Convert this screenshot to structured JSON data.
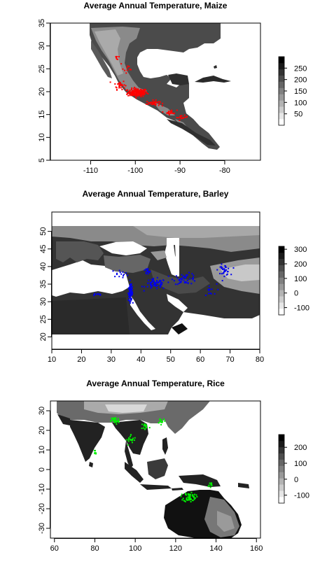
{
  "chart_data": [
    {
      "type": "heatmap",
      "title": "Average Annual Temperature, Maize",
      "xlabel": "",
      "ylabel": "",
      "xlim": [
        -119,
        -72
      ],
      "ylim": [
        5,
        35
      ],
      "x_ticks": [
        -110,
        -100,
        -90,
        -80
      ],
      "y_ticks": [
        5,
        10,
        15,
        20,
        25,
        30,
        35
      ],
      "x_tick_labels": [
        "-110",
        "-100",
        "-90",
        "-80"
      ],
      "y_tick_labels": [
        "5",
        "10",
        "15",
        "20",
        "25",
        "30",
        "35"
      ],
      "legend": {
        "placement": "right",
        "labels": [
          "250",
          "200",
          "150",
          "100",
          "50"
        ],
        "values": [
          250,
          200,
          150,
          100,
          50
        ],
        "range": [
          0,
          300
        ]
      },
      "points_color": "#ff0000",
      "raster_note_values": [
        0,
        50,
        100,
        150,
        200,
        250
      ],
      "clusters": [
        {
          "x": -99.5,
          "y": 19.8,
          "sx": 2.2,
          "sy": 0.9,
          "n": 160
        },
        {
          "x": -103.5,
          "y": 21.5,
          "sx": 1.2,
          "sy": 1.0,
          "n": 30
        },
        {
          "x": -96.0,
          "y": 17.5,
          "sx": 1.5,
          "sy": 0.6,
          "n": 35
        },
        {
          "x": -92.0,
          "y": 15.5,
          "sx": 1.3,
          "sy": 0.5,
          "n": 22
        },
        {
          "x": -89.5,
          "y": 14.4,
          "sx": 1.2,
          "sy": 0.4,
          "n": 16
        },
        {
          "x": -102.0,
          "y": 25.0,
          "sx": 1.5,
          "sy": 1.5,
          "n": 10
        },
        {
          "x": -104.0,
          "y": 27.5,
          "sx": 0.7,
          "sy": 0.7,
          "n": 6
        }
      ]
    },
    {
      "type": "heatmap",
      "title": "Average Annual Temperature, Barley",
      "xlabel": "",
      "ylabel": "",
      "xlim": [
        10,
        80
      ],
      "ylim": [
        16.5,
        55.5
      ],
      "x_ticks": [
        10,
        20,
        30,
        40,
        50,
        60,
        70,
        80
      ],
      "y_ticks": [
        20,
        25,
        30,
        35,
        40,
        45,
        50
      ],
      "x_tick_labels": [
        "10",
        "20",
        "30",
        "40",
        "50",
        "60",
        "70",
        "80"
      ],
      "y_tick_labels": [
        "20",
        "25",
        "30",
        "35",
        "40",
        "45",
        "50"
      ],
      "legend": {
        "placement": "right",
        "labels": [
          "300",
          "200",
          "100",
          "0",
          "-100"
        ],
        "values": [
          300,
          200,
          100,
          0,
          -100
        ],
        "range": [
          -150,
          320
        ]
      },
      "points_color": "#0000ee",
      "clusters": [
        {
          "x": 36.5,
          "y": 32.5,
          "sx": 0.7,
          "sy": 2.2,
          "n": 120
        },
        {
          "x": 45.0,
          "y": 35.0,
          "sx": 3.5,
          "sy": 1.5,
          "n": 60
        },
        {
          "x": 55.0,
          "y": 36.5,
          "sx": 4.0,
          "sy": 1.5,
          "n": 45
        },
        {
          "x": 68.0,
          "y": 39.0,
          "sx": 2.0,
          "sy": 1.5,
          "n": 35
        },
        {
          "x": 25.0,
          "y": 32.0,
          "sx": 2.0,
          "sy": 0.4,
          "n": 10
        },
        {
          "x": 33.0,
          "y": 38.0,
          "sx": 3.0,
          "sy": 1.0,
          "n": 15
        },
        {
          "x": 63.0,
          "y": 33.0,
          "sx": 2.5,
          "sy": 2.0,
          "n": 12
        },
        {
          "x": 42.0,
          "y": 38.5,
          "sx": 1.5,
          "sy": 1.0,
          "n": 15
        }
      ]
    },
    {
      "type": "heatmap",
      "title": "Average Annual Temperature, Rice",
      "xlabel": "",
      "ylabel": "",
      "xlim": [
        58,
        162
      ],
      "ylim": [
        -35,
        35
      ],
      "x_ticks": [
        60,
        80,
        100,
        120,
        140,
        160
      ],
      "y_ticks": [
        -30,
        -20,
        -10,
        0,
        10,
        20,
        30
      ],
      "x_tick_labels": [
        "60",
        "80",
        "100",
        "120",
        "140",
        "160"
      ],
      "y_tick_labels": [
        "-30",
        "-20",
        "-10",
        "0",
        "10",
        "20",
        "30"
      ],
      "legend": {
        "placement": "right",
        "labels": [
          "200",
          "100",
          "0",
          "-100"
        ],
        "values": [
          200,
          100,
          0,
          -100
        ],
        "range": [
          -150,
          280
        ]
      },
      "points_color": "#00ee00",
      "clusters": [
        {
          "x": 90.0,
          "y": 25.0,
          "sx": 2.0,
          "sy": 2.0,
          "n": 40
        },
        {
          "x": 105.0,
          "y": 22.0,
          "sx": 2.0,
          "sy": 2.0,
          "n": 15
        },
        {
          "x": 113.0,
          "y": 25.0,
          "sx": 2.0,
          "sy": 1.5,
          "n": 15
        },
        {
          "x": 98.0,
          "y": 15.0,
          "sx": 2.5,
          "sy": 3.0,
          "n": 20
        },
        {
          "x": 127.0,
          "y": -14.0,
          "sx": 3.0,
          "sy": 2.5,
          "n": 55
        },
        {
          "x": 137.0,
          "y": -8.0,
          "sx": 1.5,
          "sy": 2.0,
          "n": 10
        },
        {
          "x": 80.0,
          "y": 9.0,
          "sx": 1.0,
          "sy": 2.0,
          "n": 8
        }
      ]
    }
  ]
}
